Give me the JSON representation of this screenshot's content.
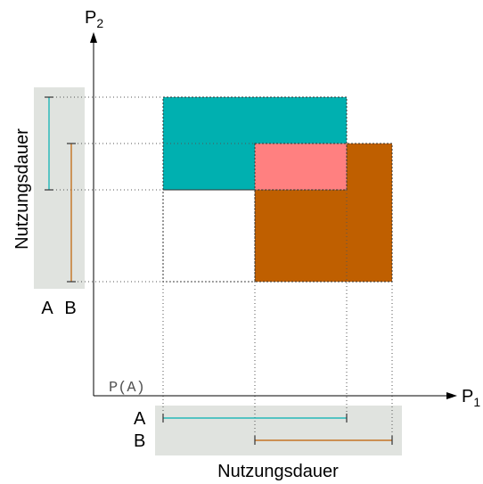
{
  "axes": {
    "y_label_base": "P",
    "y_label_sub": "2",
    "x_label_base": "P",
    "x_label_sub": "1",
    "origin_label": "P(A)"
  },
  "x_axis_legend": {
    "row_a_label": "A",
    "row_b_label": "B",
    "caption": "Nutzungsdauer"
  },
  "y_axis_legend": {
    "col_a_label": "A",
    "col_b_label": "B",
    "caption": "Nutzungsdauer"
  },
  "colors": {
    "region_a": "#00b0b0",
    "region_b": "#bf5f00",
    "overlap": "#ff8080",
    "legend_bg": "#e0e3df",
    "interval_a": "#00b0b0",
    "interval_b": "#bf5f00"
  }
}
